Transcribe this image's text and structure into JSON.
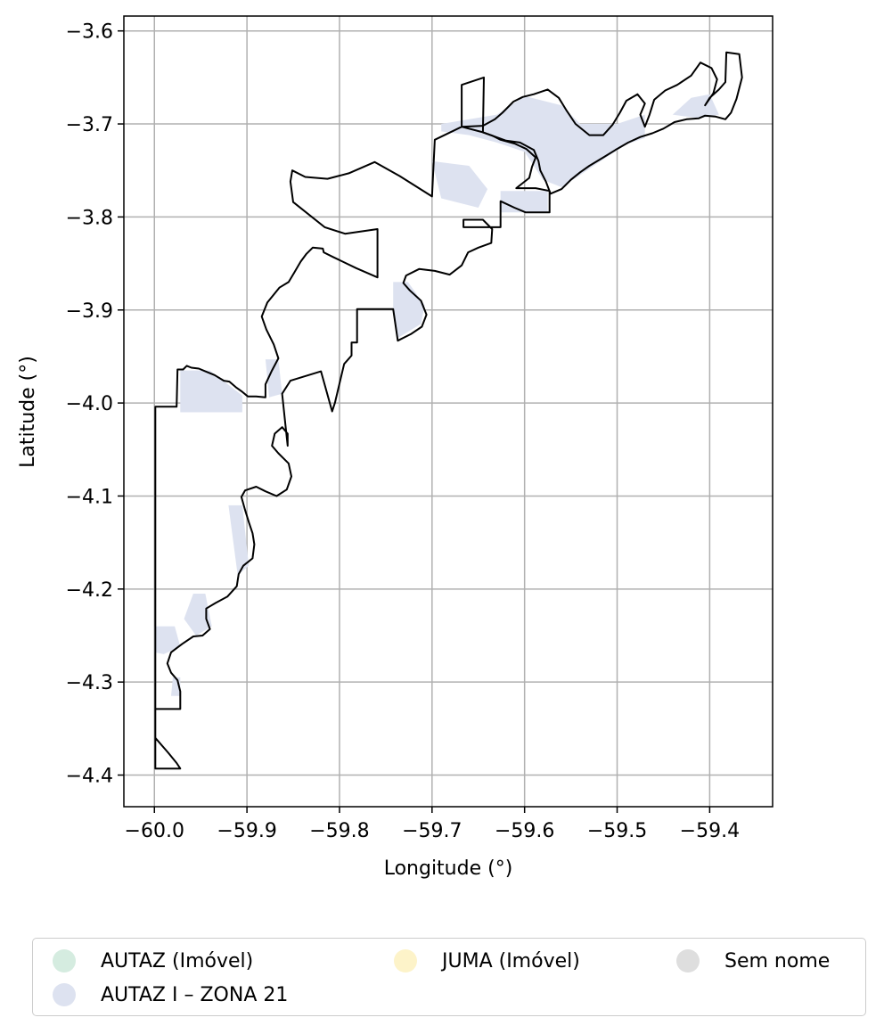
{
  "chart_data": {
    "type": "map",
    "xlabel": "Longitude (°)",
    "ylabel": "Latitude (°)",
    "xlim": [
      -60.033,
      -59.332
    ],
    "ylim": [
      -4.434,
      -3.584
    ],
    "grid": true,
    "x_ticks": [
      -60.0,
      -59.9,
      -59.8,
      -59.7,
      -59.6,
      -59.5,
      -59.4
    ],
    "x_tick_labels": [
      "−60.0",
      "−59.9",
      "−59.8",
      "−59.7",
      "−59.6",
      "−59.5",
      "−59.4"
    ],
    "y_ticks": [
      -3.6,
      -3.7,
      -3.8,
      -3.9,
      -4.0,
      -4.1,
      -4.2,
      -4.3,
      -4.4
    ],
    "y_tick_labels": [
      "−3.6",
      "−3.7",
      "−3.8",
      "−3.9",
      "−4.0",
      "−4.1",
      "−4.2",
      "−4.3",
      "−4.4"
    ],
    "boundary_color": "#000000",
    "boundary": [
      [
        -59.999,
        -4.393
      ],
      [
        -59.972,
        -4.393
      ],
      [
        -59.976,
        -4.387
      ],
      [
        -59.985,
        -4.376
      ],
      [
        -59.999,
        -4.36
      ],
      [
        -59.999,
        -4.329
      ],
      [
        -59.972,
        -4.329
      ],
      [
        -59.972,
        -4.31
      ],
      [
        -59.975,
        -4.298
      ],
      [
        -59.982,
        -4.29
      ],
      [
        -59.986,
        -4.28
      ],
      [
        -59.982,
        -4.268
      ],
      [
        -59.97,
        -4.259
      ],
      [
        -59.958,
        -4.251
      ],
      [
        -59.948,
        -4.25
      ],
      [
        -59.94,
        -4.243
      ],
      [
        -59.944,
        -4.232
      ],
      [
        -59.944,
        -4.221
      ],
      [
        -59.934,
        -4.215
      ],
      [
        -59.921,
        -4.208
      ],
      [
        -59.911,
        -4.197
      ],
      [
        -59.909,
        -4.184
      ],
      [
        -59.904,
        -4.175
      ],
      [
        -59.894,
        -4.167
      ],
      [
        -59.892,
        -4.152
      ],
      [
        -59.894,
        -4.14
      ],
      [
        -59.898,
        -4.128
      ],
      [
        -59.902,
        -4.115
      ],
      [
        -59.906,
        -4.101
      ],
      [
        -59.902,
        -4.094
      ],
      [
        -59.89,
        -4.09
      ],
      [
        -59.88,
        -4.095
      ],
      [
        -59.868,
        -4.1
      ],
      [
        -59.857,
        -4.093
      ],
      [
        -59.852,
        -4.079
      ],
      [
        -59.855,
        -4.065
      ],
      [
        -59.866,
        -4.054
      ],
      [
        -59.873,
        -4.046
      ],
      [
        -59.87,
        -4.033
      ],
      [
        -59.862,
        -4.026
      ],
      [
        -59.856,
        -4.033
      ],
      [
        -59.856,
        -4.046
      ],
      [
        -59.862,
        -3.99
      ],
      [
        -59.853,
        -3.976
      ],
      [
        -59.82,
        -3.966
      ],
      [
        -59.808,
        -4.009
      ],
      [
        -59.805,
        -4.0
      ],
      [
        -59.795,
        -3.958
      ],
      [
        -59.787,
        -3.949
      ],
      [
        -59.787,
        -3.935
      ],
      [
        -59.781,
        -3.935
      ],
      [
        -59.781,
        -3.899
      ],
      [
        -59.742,
        -3.899
      ],
      [
        -59.737,
        -3.933
      ],
      [
        -59.723,
        -3.926
      ],
      [
        -59.711,
        -3.918
      ],
      [
        -59.706,
        -3.905
      ],
      [
        -59.712,
        -3.89
      ],
      [
        -59.724,
        -3.879
      ],
      [
        -59.731,
        -3.871
      ],
      [
        -59.728,
        -3.863
      ],
      [
        -59.714,
        -3.856
      ],
      [
        -59.697,
        -3.858
      ],
      [
        -59.681,
        -3.862
      ],
      [
        -59.668,
        -3.852
      ],
      [
        -59.661,
        -3.838
      ],
      [
        -59.65,
        -3.833
      ],
      [
        -59.636,
        -3.828
      ],
      [
        -59.635,
        -3.813
      ],
      [
        -59.645,
        -3.803
      ],
      [
        -59.666,
        -3.803
      ],
      [
        -59.666,
        -3.811
      ],
      [
        -59.626,
        -3.811
      ],
      [
        -59.626,
        -3.783
      ],
      [
        -59.611,
        -3.79
      ],
      [
        -59.599,
        -3.795
      ],
      [
        -59.573,
        -3.795
      ],
      [
        -59.573,
        -3.772
      ],
      [
        -59.588,
        -3.769
      ],
      [
        -59.609,
        -3.769
      ],
      [
        -59.595,
        -3.758
      ],
      [
        -59.592,
        -3.746
      ],
      [
        -59.588,
        -3.736
      ],
      [
        -59.598,
        -3.727
      ],
      [
        -59.611,
        -3.721
      ],
      [
        -59.626,
        -3.717
      ],
      [
        -59.634,
        -3.713
      ],
      [
        -59.645,
        -3.709
      ],
      [
        -59.644,
        -3.65
      ],
      [
        -59.668,
        -3.658
      ],
      [
        -59.668,
        -3.703
      ],
      [
        -59.697,
        -3.717
      ],
      [
        -59.7,
        -3.778
      ],
      [
        -59.735,
        -3.756
      ],
      [
        -59.762,
        -3.741
      ],
      [
        -59.79,
        -3.753
      ],
      [
        -59.813,
        -3.759
      ],
      [
        -59.837,
        -3.757
      ],
      [
        -59.851,
        -3.75
      ],
      [
        -59.853,
        -3.762
      ],
      [
        -59.85,
        -3.784
      ],
      [
        -59.816,
        -3.811
      ],
      [
        -59.794,
        -3.818
      ],
      [
        -59.759,
        -3.813
      ],
      [
        -59.759,
        -3.865
      ],
      [
        -59.782,
        -3.855
      ],
      [
        -59.807,
        -3.843
      ],
      [
        -59.817,
        -3.838
      ],
      [
        -59.818,
        -3.834
      ],
      [
        -59.829,
        -3.833
      ],
      [
        -59.836,
        -3.84
      ],
      [
        -59.842,
        -3.848
      ],
      [
        -59.849,
        -3.86
      ],
      [
        -59.855,
        -3.87
      ],
      [
        -59.865,
        -3.876
      ],
      [
        -59.878,
        -3.892
      ],
      [
        -59.884,
        -3.907
      ],
      [
        -59.879,
        -3.921
      ],
      [
        -59.871,
        -3.937
      ],
      [
        -59.866,
        -3.952
      ],
      [
        -59.873,
        -3.965
      ],
      [
        -59.88,
        -3.98
      ],
      [
        -59.88,
        -3.994
      ],
      [
        -59.89,
        -3.993
      ],
      [
        -59.899,
        -3.993
      ],
      [
        -59.905,
        -3.988
      ],
      [
        -59.912,
        -3.983
      ],
      [
        -59.919,
        -3.977
      ],
      [
        -59.925,
        -3.976
      ],
      [
        -59.935,
        -3.97
      ],
      [
        -59.945,
        -3.966
      ],
      [
        -59.952,
        -3.963
      ],
      [
        -59.96,
        -3.962
      ],
      [
        -59.965,
        -3.96
      ],
      [
        -59.969,
        -3.964
      ],
      [
        -59.975,
        -3.964
      ],
      [
        -59.976,
        -4.004
      ],
      [
        -59.999,
        -4.004
      ]
    ],
    "boundary_northeast": [
      [
        -59.668,
        -3.703
      ],
      [
        -59.645,
        -3.709
      ],
      [
        -59.634,
        -3.713
      ],
      [
        -59.62,
        -3.718
      ],
      [
        -59.605,
        -3.72
      ],
      [
        -59.59,
        -3.728
      ],
      [
        -59.585,
        -3.74
      ],
      [
        -59.583,
        -3.75
      ],
      [
        -59.577,
        -3.762
      ],
      [
        -59.572,
        -3.775
      ],
      [
        -59.56,
        -3.77
      ],
      [
        -59.55,
        -3.76
      ],
      [
        -59.54,
        -3.752
      ],
      [
        -59.53,
        -3.745
      ],
      [
        -59.515,
        -3.736
      ],
      [
        -59.502,
        -3.728
      ],
      [
        -59.488,
        -3.72
      ],
      [
        -59.475,
        -3.714
      ],
      [
        -59.462,
        -3.71
      ],
      [
        -59.45,
        -3.705
      ],
      [
        -59.438,
        -3.698
      ],
      [
        -59.425,
        -3.695
      ],
      [
        -59.412,
        -3.694
      ],
      [
        -59.405,
        -3.691
      ],
      [
        -59.394,
        -3.692
      ],
      [
        -59.383,
        -3.695
      ],
      [
        -59.377,
        -3.688
      ],
      [
        -59.371,
        -3.673
      ],
      [
        -59.365,
        -3.65
      ],
      [
        -59.368,
        -3.625
      ],
      [
        -59.382,
        -3.623
      ],
      [
        -59.383,
        -3.655
      ],
      [
        -59.39,
        -3.663
      ],
      [
        -59.4,
        -3.672
      ],
      [
        -59.405,
        -3.68
      ],
      [
        -59.396,
        -3.667
      ],
      [
        -59.392,
        -3.652
      ],
      [
        -59.398,
        -3.64
      ],
      [
        -59.41,
        -3.634
      ],
      [
        -59.42,
        -3.648
      ],
      [
        -59.435,
        -3.658
      ],
      [
        -59.448,
        -3.664
      ],
      [
        -59.46,
        -3.674
      ],
      [
        -59.465,
        -3.69
      ],
      [
        -59.47,
        -3.703
      ],
      [
        -59.475,
        -3.69
      ],
      [
        -59.47,
        -3.678
      ],
      [
        -59.478,
        -3.668
      ],
      [
        -59.49,
        -3.675
      ],
      [
        -59.497,
        -3.688
      ],
      [
        -59.505,
        -3.701
      ],
      [
        -59.515,
        -3.712
      ],
      [
        -59.53,
        -3.712
      ],
      [
        -59.545,
        -3.7
      ],
      [
        -59.555,
        -3.685
      ],
      [
        -59.563,
        -3.672
      ],
      [
        -59.575,
        -3.663
      ],
      [
        -59.59,
        -3.668
      ],
      [
        -59.602,
        -3.671
      ],
      [
        -59.612,
        -3.676
      ],
      [
        -59.624,
        -3.688
      ],
      [
        -59.632,
        -3.695
      ],
      [
        -59.645,
        -3.702
      ],
      [
        -59.668,
        -3.703
      ]
    ],
    "fill_regions": [
      {
        "series": "AUTAZ I – ZONA 21",
        "points": [
          [
            -59.972,
            -3.965
          ],
          [
            -59.94,
            -3.965
          ],
          [
            -59.905,
            -3.992
          ],
          [
            -59.905,
            -4.01
          ],
          [
            -59.972,
            -4.01
          ]
        ]
      },
      {
        "series": "AUTAZ I – ZONA 21",
        "points": [
          [
            -59.88,
            -3.953
          ],
          [
            -59.866,
            -3.953
          ],
          [
            -59.862,
            -3.99
          ],
          [
            -59.876,
            -3.994
          ]
        ]
      },
      {
        "series": "AUTAZ I – ZONA 21",
        "points": [
          [
            -59.742,
            -3.87
          ],
          [
            -59.726,
            -3.87
          ],
          [
            -59.708,
            -3.895
          ],
          [
            -59.712,
            -3.915
          ],
          [
            -59.737,
            -3.93
          ],
          [
            -59.742,
            -3.9
          ]
        ]
      },
      {
        "series": "AUTAZ I – ZONA 21",
        "points": [
          [
            -59.626,
            -3.772
          ],
          [
            -59.575,
            -3.772
          ],
          [
            -59.575,
            -3.795
          ],
          [
            -59.626,
            -3.795
          ]
        ]
      },
      {
        "series": "AUTAZ I – ZONA 21",
        "points": [
          [
            -59.69,
            -3.708
          ],
          [
            -59.66,
            -3.712
          ],
          [
            -59.63,
            -3.72
          ],
          [
            -59.6,
            -3.73
          ],
          [
            -59.58,
            -3.76
          ],
          [
            -59.56,
            -3.768
          ],
          [
            -59.54,
            -3.755
          ],
          [
            -59.515,
            -3.738
          ],
          [
            -59.49,
            -3.722
          ],
          [
            -59.47,
            -3.715
          ],
          [
            -59.47,
            -3.69
          ],
          [
            -59.5,
            -3.7
          ],
          [
            -59.54,
            -3.7
          ],
          [
            -59.56,
            -3.68
          ],
          [
            -59.6,
            -3.67
          ],
          [
            -59.63,
            -3.69
          ],
          [
            -59.69,
            -3.7
          ]
        ]
      },
      {
        "series": "AUTAZ I – ZONA 21",
        "points": [
          [
            -59.7,
            -3.74
          ],
          [
            -59.69,
            -3.78
          ],
          [
            -59.65,
            -3.79
          ],
          [
            -59.64,
            -3.77
          ],
          [
            -59.66,
            -3.745
          ]
        ]
      },
      {
        "series": "AUTAZ I – ZONA 21",
        "points": [
          [
            -59.44,
            -3.69
          ],
          [
            -59.42,
            -3.672
          ],
          [
            -59.4,
            -3.668
          ],
          [
            -59.39,
            -3.69
          ],
          [
            -59.41,
            -3.694
          ]
        ]
      },
      {
        "series": "AUTAZ I – ZONA 21",
        "points": [
          [
            -59.92,
            -4.11
          ],
          [
            -59.905,
            -4.11
          ],
          [
            -59.898,
            -4.175
          ],
          [
            -59.91,
            -4.185
          ]
        ]
      },
      {
        "series": "AUTAZ I – ZONA 21",
        "points": [
          [
            -59.958,
            -4.205
          ],
          [
            -59.945,
            -4.205
          ],
          [
            -59.938,
            -4.24
          ],
          [
            -59.955,
            -4.25
          ],
          [
            -59.968,
            -4.232
          ]
        ]
      },
      {
        "series": "AUTAZ I – ZONA 21",
        "points": [
          [
            -60.0,
            -4.24
          ],
          [
            -59.978,
            -4.24
          ],
          [
            -59.972,
            -4.262
          ],
          [
            -59.99,
            -4.27
          ],
          [
            -60.0,
            -4.268
          ]
        ]
      },
      {
        "series": "AUTAZ I – ZONA 21",
        "points": [
          [
            -59.98,
            -4.295
          ],
          [
            -59.972,
            -4.295
          ],
          [
            -59.972,
            -4.315
          ],
          [
            -59.982,
            -4.315
          ]
        ]
      }
    ],
    "series": [
      {
        "name": "AUTAZ (Imóvel)",
        "color": "#d5ece0"
      },
      {
        "name": "AUTAZ I – ZONA 21",
        "color": "#dde2f0"
      },
      {
        "name": "JUMA (Imóvel)",
        "color": "#fdf3c9"
      },
      {
        "name": "Sem nome",
        "color": "#dedede"
      }
    ],
    "legend_location": "below",
    "legend_columns": 3
  }
}
